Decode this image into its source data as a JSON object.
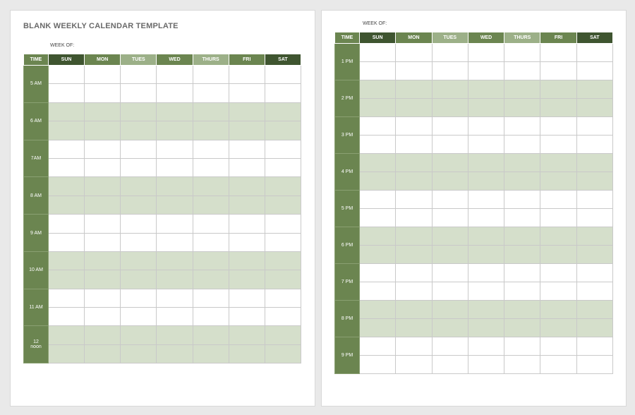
{
  "page1": {
    "title": "BLANK WEEKLY CALENDAR TEMPLATE",
    "week_of": "WEEK OF:",
    "hours": [
      "5 AM",
      "6 AM",
      "7AM",
      "8 AM",
      "9 AM",
      "10 AM",
      "11 AM",
      "12 noon"
    ]
  },
  "page2": {
    "week_of": "WEEK OF:",
    "hours": [
      "1 PM",
      "2 PM",
      "3 PM",
      "4 PM",
      "5 PM",
      "6 PM",
      "7 PM",
      "8 PM",
      "9 PM"
    ]
  },
  "columns": [
    "TIME",
    "SUN",
    "MON",
    "TUES",
    "WED",
    "THURS",
    "FRI",
    "SAT"
  ],
  "colors": {
    "dark": "#3f5530",
    "mid": "#6b8550",
    "light": "#9cb088",
    "shade": "#d5dfcb"
  }
}
